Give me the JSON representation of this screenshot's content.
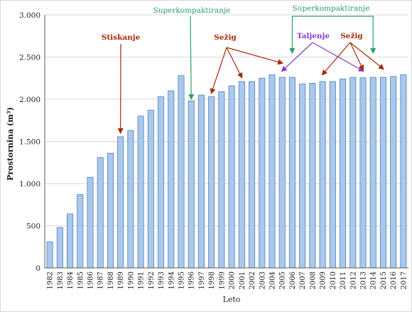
{
  "colors": {
    "bar_fill": "#a9c8ec",
    "bar_stroke": "#4f81bd",
    "grid": "#d9d9d9",
    "axis": "#595959",
    "text": "#1f1f1f",
    "annot_red": "#a52a0a",
    "annot_green": "#2e9e6a",
    "annot_purple": "#8a38c8"
  },
  "chart_data": {
    "type": "bar",
    "title": "",
    "xlabel": "Leto",
    "ylabel": "Prostornina (m³)",
    "ylim": [
      0,
      3000
    ],
    "yticks": [
      0,
      500,
      1000,
      1500,
      2000,
      2500,
      3000
    ],
    "ytick_labels": [
      "0",
      "500",
      "1.000",
      "1.500",
      "2.000",
      "2.500",
      "3.000"
    ],
    "grid": true,
    "categories": [
      "1982",
      "1983",
      "1984",
      "1985",
      "1986",
      "1987",
      "1988",
      "1989",
      "1990",
      "1991",
      "1992",
      "1993",
      "1994",
      "1995",
      "1996",
      "1997",
      "1998",
      "1999",
      "2000",
      "2001",
      "2002",
      "2003",
      "2004",
      "2005",
      "2006",
      "2007",
      "2008",
      "2009",
      "2010",
      "2011",
      "2012",
      "2013",
      "2014",
      "2015",
      "2016",
      "2017"
    ],
    "values": [
      310,
      480,
      640,
      870,
      1075,
      1310,
      1360,
      1555,
      1630,
      1800,
      1870,
      2030,
      2100,
      2280,
      1980,
      2050,
      2030,
      2090,
      2160,
      2210,
      2210,
      2250,
      2290,
      2260,
      2260,
      2180,
      2190,
      2210,
      2210,
      2240,
      2260,
      2255,
      2260,
      2260,
      2270,
      2290
    ],
    "annotations": [
      {
        "text": "Stiskanje",
        "color": "annot_red",
        "targets": [
          "1989"
        ]
      },
      {
        "text": "Superkompaktiranje",
        "color": "annot_green",
        "targets": [
          "1996"
        ]
      },
      {
        "text": "Sežig",
        "color": "annot_red",
        "targets": [
          "1998",
          "2001",
          "2005"
        ]
      },
      {
        "text": "Superkompaktiranje",
        "color": "annot_green",
        "targets": [
          "2006",
          "2014"
        ]
      },
      {
        "text": "Taljenje",
        "color": "annot_purple",
        "targets": [
          "2005",
          "2013"
        ]
      },
      {
        "text": "Sežig",
        "color": "annot_red",
        "targets": [
          "2009",
          "2013",
          "2015"
        ]
      }
    ]
  }
}
